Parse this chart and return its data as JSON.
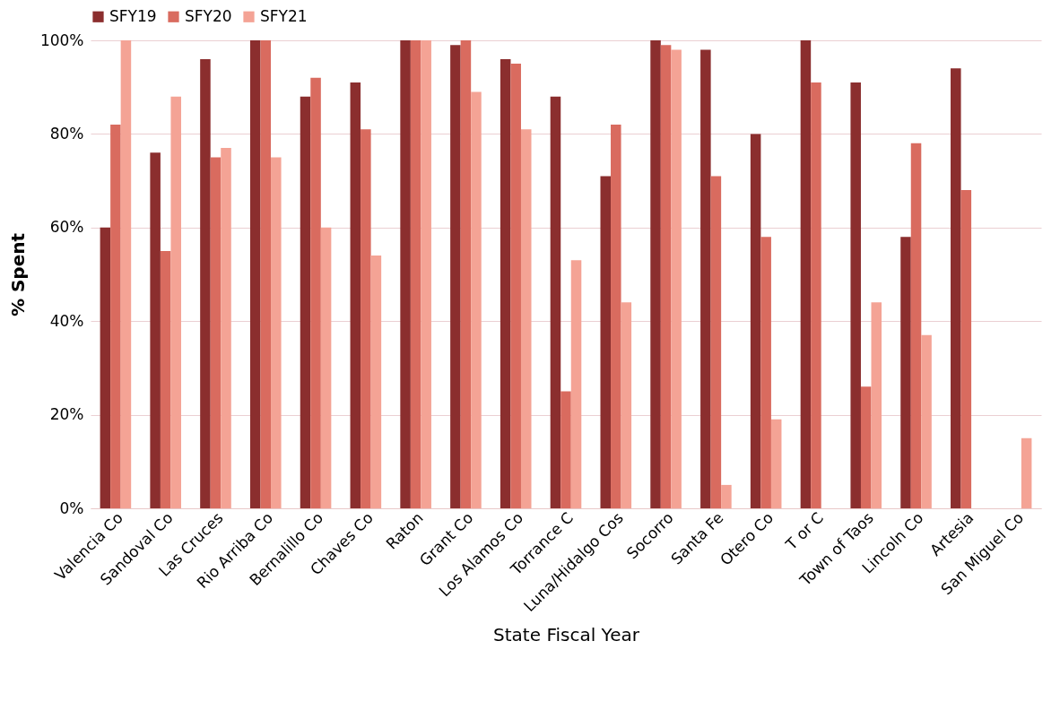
{
  "chart_data": {
    "type": "bar",
    "xlabel": "State Fiscal Year",
    "ylabel": "% Spent",
    "categories": [
      "Valencia Co",
      "Sandoval Co",
      "Las Cruces",
      "Rio Arriba Co",
      "Bernalillo Co",
      "Chaves Co",
      "Raton",
      "Grant Co",
      "Los Alamos Co",
      "Torrance C",
      "Luna/Hidalgo Cos",
      "Socorro",
      "Santa Fe",
      "Otero Co",
      "T or C",
      "Town of Taos",
      "Lincoln Co",
      "Artesia",
      "San Miguel Co"
    ],
    "series": [
      {
        "name": "SFY19",
        "color": "#8b2e2e",
        "values": [
          60,
          76,
          96,
          100,
          88,
          91,
          100,
          99,
          96,
          88,
          71,
          100,
          98,
          80,
          100,
          91,
          58,
          94,
          null
        ]
      },
      {
        "name": "SFY20",
        "color": "#d96b5f",
        "values": [
          82,
          55,
          75,
          100,
          92,
          81,
          100,
          100,
          95,
          25,
          82,
          99,
          71,
          58,
          91,
          26,
          78,
          68,
          null
        ]
      },
      {
        "name": "SFY21",
        "color": "#f4a395",
        "values": [
          100,
          88,
          77,
          75,
          60,
          54,
          100,
          89,
          81,
          53,
          44,
          98,
          5,
          19,
          null,
          44,
          37,
          null,
          15
        ]
      }
    ],
    "ylim": [
      0,
      100
    ],
    "yticks": [
      {
        "value": 0,
        "label": "0%"
      },
      {
        "value": 20,
        "label": "20%"
      },
      {
        "value": 40,
        "label": "40%"
      },
      {
        "value": 60,
        "label": "60%"
      },
      {
        "value": 80,
        "label": "80%"
      },
      {
        "value": 100,
        "label": "100%"
      }
    ],
    "grid": "y",
    "legend": "top"
  }
}
